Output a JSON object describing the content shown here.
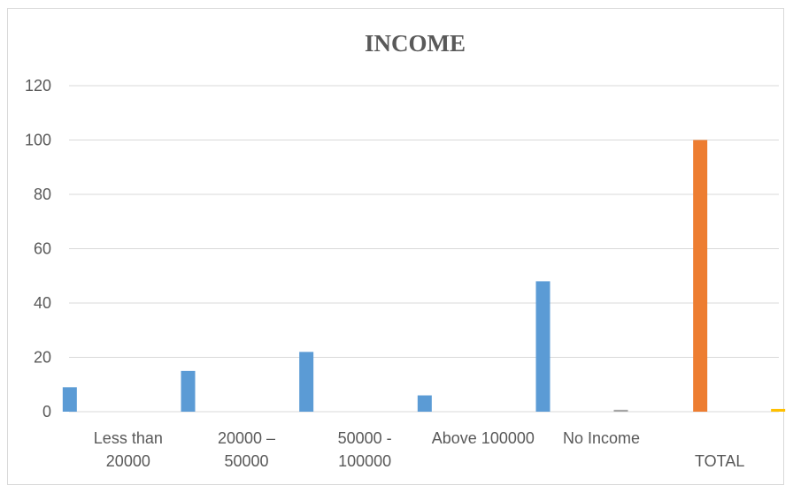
{
  "chart_data": {
    "type": "bar",
    "title": "INCOME",
    "xlabel": "",
    "ylabel": "",
    "ylim": [
      0,
      120
    ],
    "yticks": [
      0,
      20,
      40,
      60,
      80,
      100,
      120
    ],
    "grid": true,
    "categories": [
      [
        "Less than",
        "20000"
      ],
      [
        "20000 –",
        "50000"
      ],
      [
        "50000 -",
        "100000"
      ],
      [
        "Above 100000"
      ],
      [
        "No Income"
      ],
      [
        "",
        "TOTAL"
      ]
    ],
    "series": [
      {
        "color": "#5b9bd5",
        "values": [
          9,
          15,
          22,
          6,
          48,
          null
        ]
      },
      {
        "color": "#ed7d31",
        "values": [
          null,
          null,
          null,
          null,
          null,
          100
        ]
      },
      {
        "color": "#a5a5a5",
        "values": [
          null,
          null,
          null,
          null,
          0.7,
          null
        ]
      },
      {
        "color": "#ffc000",
        "values": [
          null,
          null,
          null,
          null,
          null,
          1
        ]
      }
    ]
  }
}
